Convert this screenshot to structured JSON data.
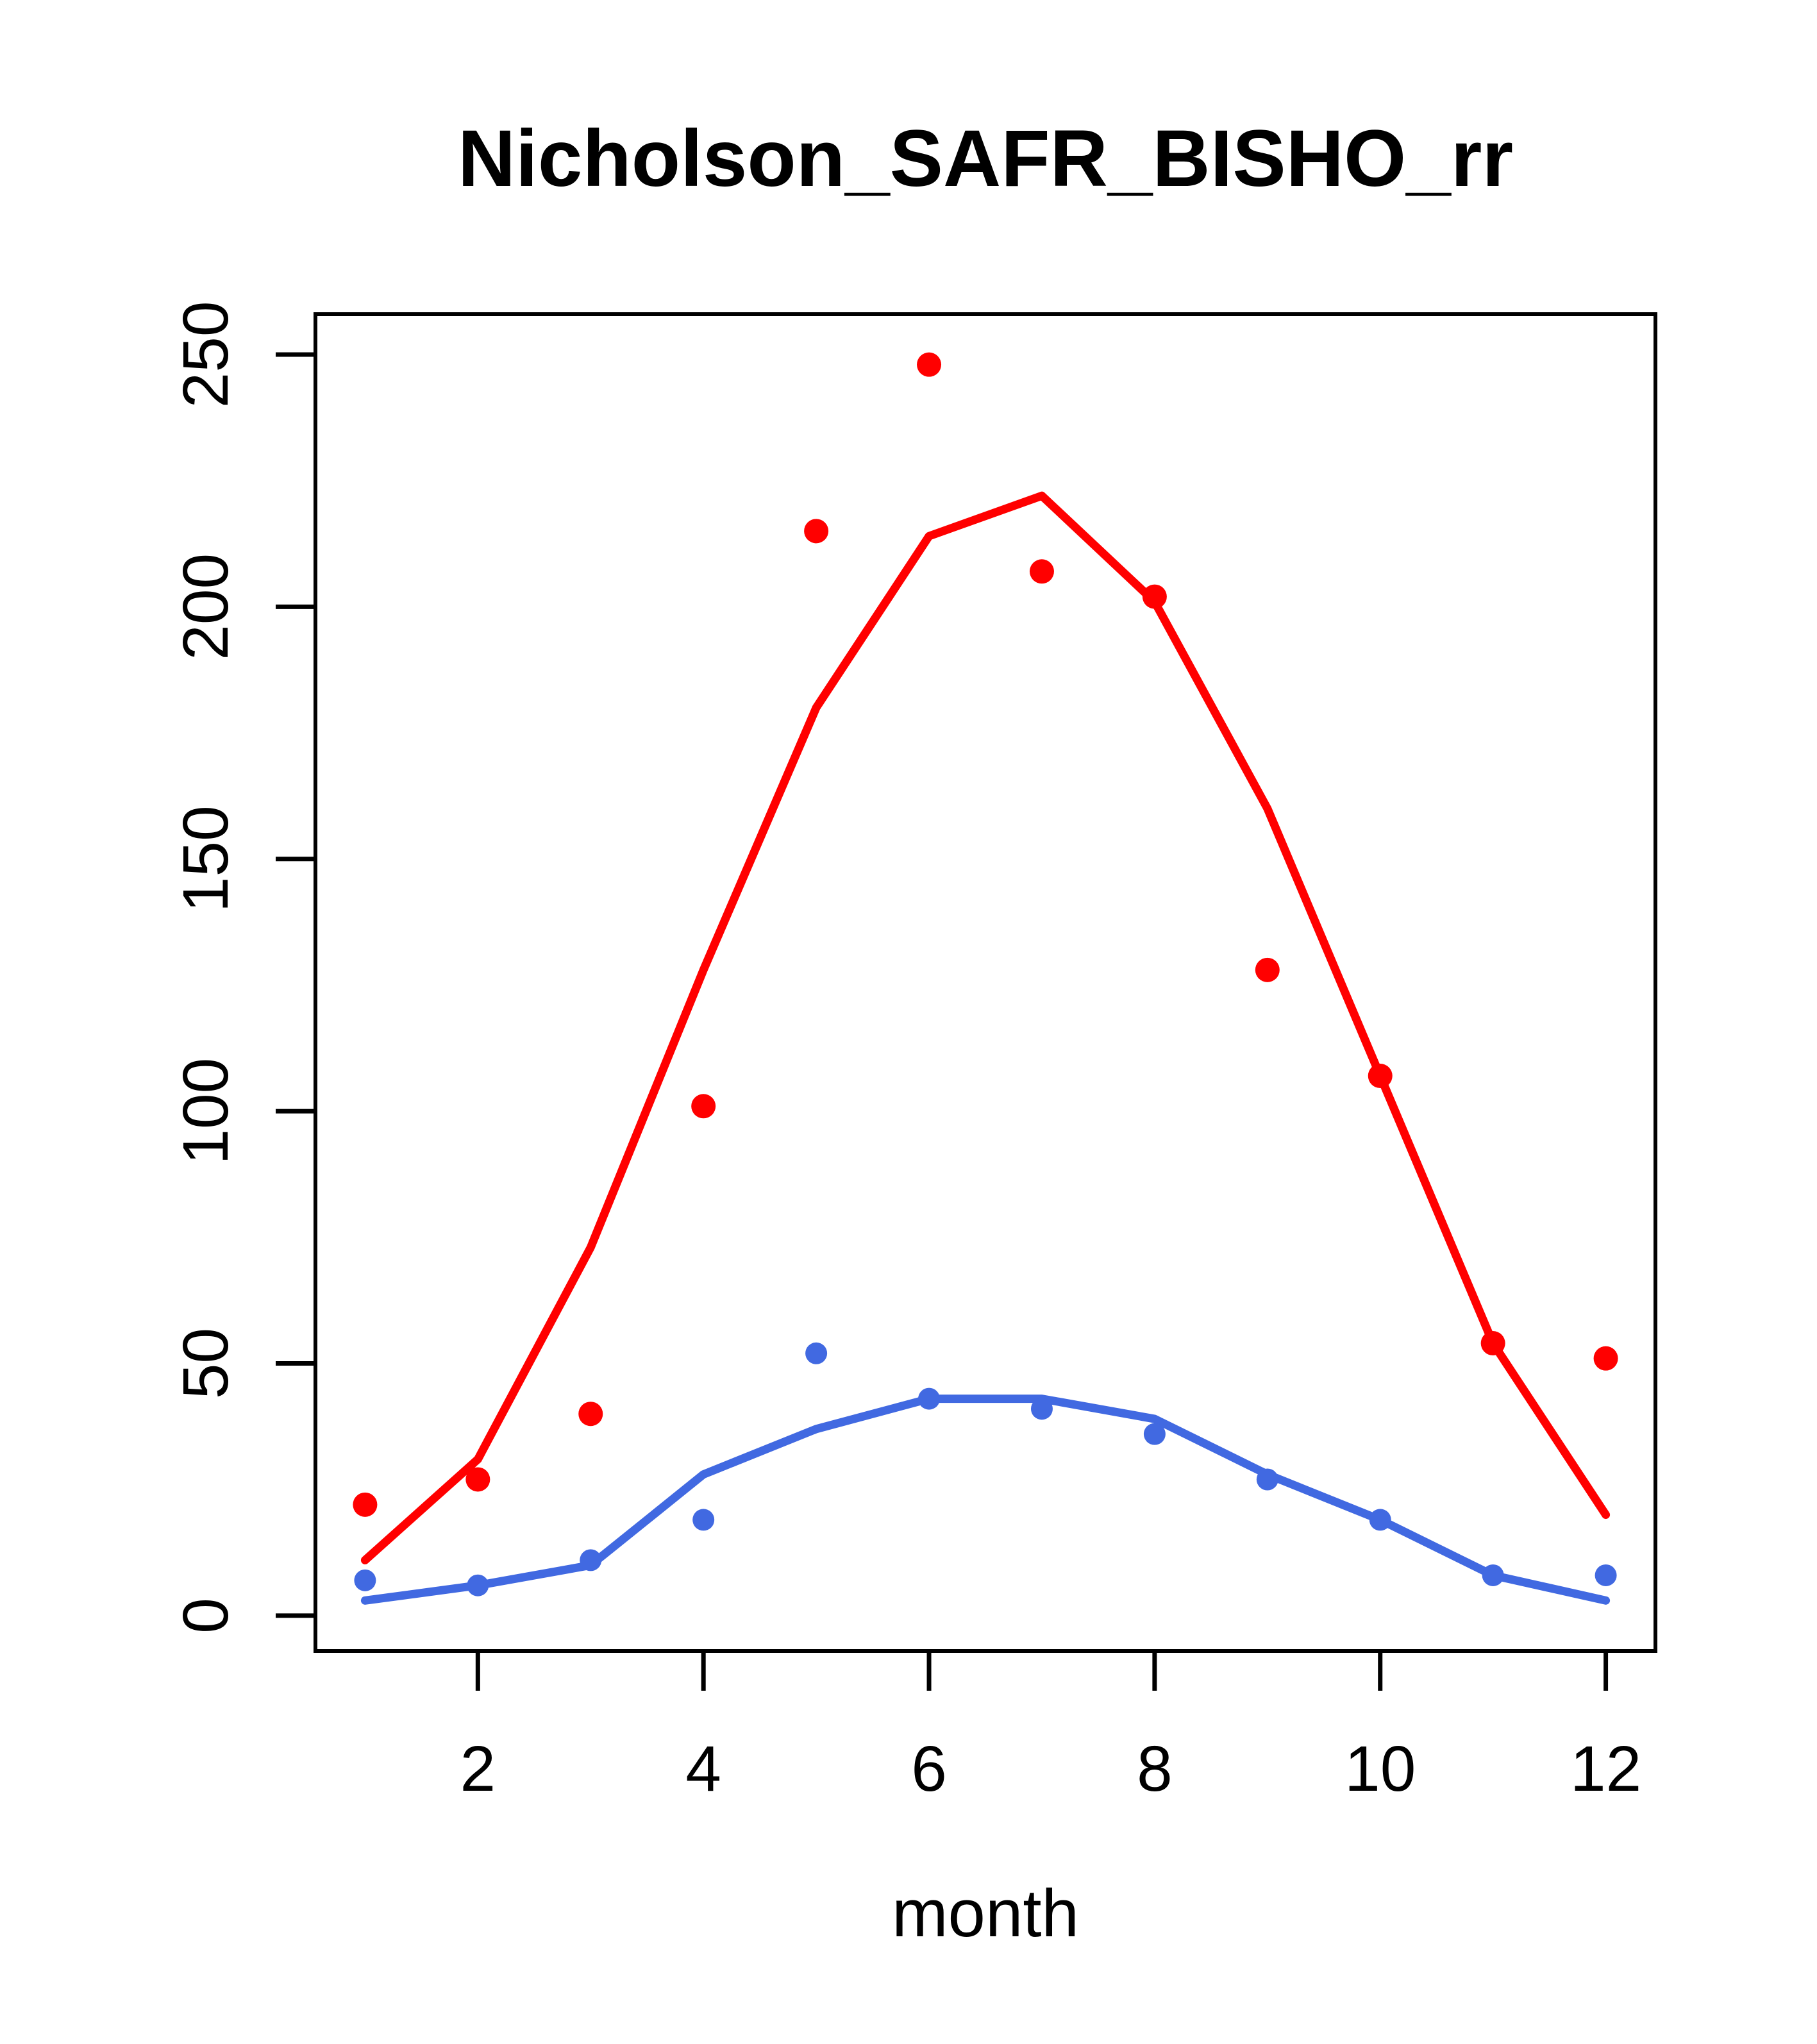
{
  "figure": {
    "title": "Nicholson_SAFR_BISHO_rr",
    "xlabel": "month",
    "background": "#ffffff"
  },
  "chart_data": {
    "type": "line",
    "title": "Nicholson_SAFR_BISHO_rr",
    "xlabel": "month",
    "ylabel": "",
    "x": [
      1,
      2,
      3,
      4,
      5,
      6,
      7,
      8,
      9,
      10,
      11,
      12
    ],
    "series": [
      {
        "name": "red-points",
        "kind": "scatter",
        "color": "#FF0000",
        "values": [
          22,
          27,
          40,
          101,
          215,
          248,
          207,
          202,
          128,
          107,
          54,
          51
        ]
      },
      {
        "name": "red-line",
        "kind": "line",
        "color": "#FF0000",
        "values": [
          11,
          31,
          73,
          128,
          180,
          214,
          222,
          201,
          160,
          107,
          54,
          20
        ]
      },
      {
        "name": "blue-points",
        "kind": "scatter",
        "color": "#4169E1",
        "values": [
          7,
          6,
          11,
          19,
          52,
          43,
          41,
          36,
          27,
          19,
          8,
          8
        ]
      },
      {
        "name": "blue-line",
        "kind": "line",
        "color": "#4169E1",
        "values": [
          3,
          6,
          10,
          28,
          37,
          43,
          43,
          39,
          28,
          19,
          8,
          3
        ]
      }
    ],
    "xticks": [
      2,
      4,
      6,
      8,
      10,
      12
    ],
    "yticks": [
      0,
      50,
      100,
      150,
      200,
      250
    ],
    "xlim": [
      0.56,
      12.44
    ],
    "ylim": [
      -7,
      258
    ],
    "grid": false,
    "legend": "none",
    "axis_color": "#000000"
  }
}
